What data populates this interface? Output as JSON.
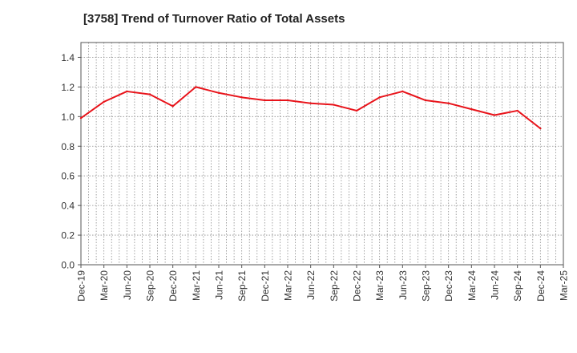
{
  "chart_data": {
    "type": "line",
    "title": "[3758]  Trend of Turnover Ratio of Total Assets",
    "xlabel": "",
    "ylabel": "",
    "ylim": [
      0.0,
      1.5
    ],
    "y_ticks": [
      "0.0",
      "0.2",
      "0.4",
      "0.6",
      "0.8",
      "1.0",
      "1.2",
      "1.4"
    ],
    "x_ticks": [
      "Dec-19",
      "Mar-20",
      "Jun-20",
      "Sep-20",
      "Dec-20",
      "Mar-21",
      "Jun-21",
      "Sep-21",
      "Dec-21",
      "Mar-22",
      "Jun-22",
      "Sep-22",
      "Dec-22",
      "Mar-23",
      "Jun-23",
      "Sep-23",
      "Dec-23",
      "Mar-24",
      "Jun-24",
      "Sep-24",
      "Dec-24",
      "Mar-25"
    ],
    "grid": true,
    "series": [
      {
        "color": "#e8141b",
        "x": [
          "Dec-19",
          "Mar-20",
          "Jun-20",
          "Sep-20",
          "Dec-20",
          "Mar-21",
          "Jun-21",
          "Sep-21",
          "Dec-21",
          "Mar-22",
          "Jun-22",
          "Sep-22",
          "Dec-22",
          "Mar-23",
          "Jun-23",
          "Sep-23",
          "Dec-23",
          "Mar-24",
          "Jun-24",
          "Sep-24",
          "Dec-24"
        ],
        "values": [
          0.99,
          1.1,
          1.17,
          1.15,
          1.07,
          1.2,
          1.16,
          1.13,
          1.11,
          1.11,
          1.09,
          1.08,
          1.04,
          1.13,
          1.17,
          1.11,
          1.09,
          1.05,
          1.01,
          1.04,
          0.92
        ]
      }
    ]
  }
}
